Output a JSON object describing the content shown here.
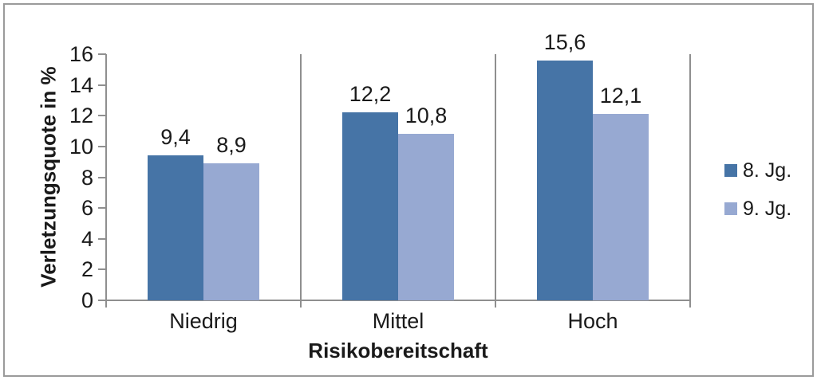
{
  "chart_data": {
    "type": "bar",
    "title": "",
    "xlabel": "Risikobereitschaft",
    "ylabel": "Verletzungsquote in %",
    "categories": [
      "Niedrig",
      "Mittel",
      "Hoch"
    ],
    "series": [
      {
        "name": "8. Jg.",
        "color": "#4674A6",
        "values": [
          9.4,
          12.2,
          15.6
        ]
      },
      {
        "name": "9. Jg.",
        "color": "#97A9D2",
        "values": [
          8.9,
          10.8,
          12.1
        ]
      }
    ],
    "value_labels": [
      [
        "9,4",
        "12,2",
        "15,6"
      ],
      [
        "8,9",
        "10,8",
        "12,1"
      ]
    ],
    "ylim": [
      0,
      16
    ],
    "ytick_step": 2,
    "ytick_labels": [
      "0",
      "2",
      "4",
      "6",
      "8",
      "10",
      "12",
      "14",
      "16"
    ],
    "decimal_separator": ",",
    "legend_position": "right",
    "grid": "vertical-category-separators-only"
  },
  "colors": {
    "background": "#FFFFFF",
    "axis_line": "#8F8F8F",
    "frame_border": "#9A9A9A",
    "text": "#1A1A1A"
  }
}
